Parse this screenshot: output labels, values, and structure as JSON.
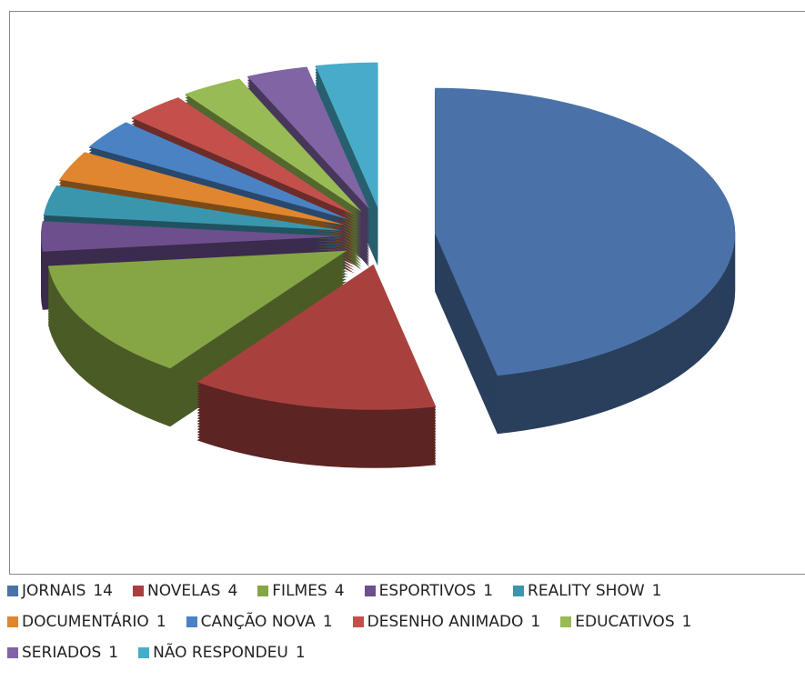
{
  "chart_data": {
    "type": "pie",
    "categories": [
      "JORNAIS",
      "NOVELAS",
      "FILMES",
      "ESPORTIVOS",
      "REALITY SHOW",
      "DOCUMENTÁRIO",
      "CANÇÃO NOVA",
      "DESENHO ANIMADO",
      "EDUCATIVOS",
      "SERIADOS",
      "NÃO RESPONDEU"
    ],
    "values": [
      14,
      4,
      4,
      1,
      1,
      1,
      1,
      1,
      1,
      1,
      1
    ],
    "colors": [
      "#4a72a8",
      "#a8413e",
      "#86a545",
      "#6c4f8c",
      "#3a96ad",
      "#e0862e",
      "#4a82c4",
      "#c4504c",
      "#98bb55",
      "#8164a3",
      "#48acc8"
    ],
    "legend": "bottom"
  }
}
